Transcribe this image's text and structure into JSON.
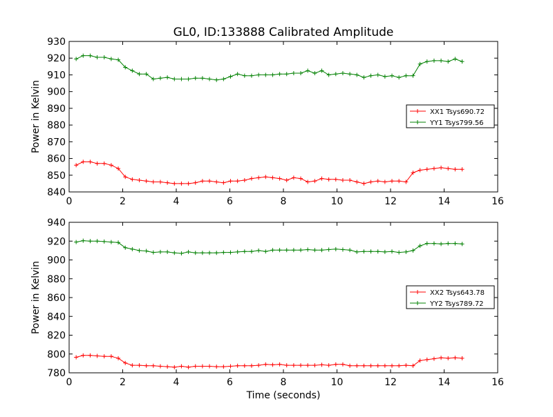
{
  "chart_data": {
    "title": "GL0, ID:133888 Calibrated Amplitude",
    "xlabel": "Time (seconds)",
    "colors": {
      "XX": "#ff0000",
      "YY": "#008000"
    },
    "x": [
      0.262,
      0.524,
      0.786,
      1.048,
      1.31,
      1.572,
      1.834,
      2.096,
      2.358,
      2.62,
      2.882,
      3.144,
      3.406,
      3.668,
      3.93,
      4.192,
      4.454,
      4.716,
      4.978,
      5.24,
      5.502,
      5.764,
      6.026,
      6.288,
      6.55,
      6.812,
      7.074,
      7.336,
      7.598,
      7.86,
      8.122,
      8.384,
      8.646,
      8.908,
      9.17,
      9.432,
      9.694,
      9.956,
      10.218,
      10.48,
      10.742,
      11.004,
      11.266,
      11.528,
      11.79,
      12.052,
      12.314,
      12.576,
      12.838,
      13.1,
      13.362,
      13.624,
      13.886,
      14.148,
      14.41,
      14.672
    ],
    "panels": [
      {
        "ylabel": "Power in Kelvin",
        "xlim": [
          0,
          16
        ],
        "ylim": [
          840,
          930
        ],
        "xticks": [
          0,
          2,
          4,
          6,
          8,
          10,
          12,
          14,
          16
        ],
        "yticks": [
          840,
          850,
          860,
          870,
          880,
          890,
          900,
          910,
          920,
          930
        ],
        "legend_position": "right",
        "series": [
          {
            "name": "XX1 Tsys690.72",
            "color_key": "XX",
            "values": [
              856,
              858,
              858,
              857,
              857,
              856,
              854,
              849,
              847.5,
              847,
              846.5,
              846,
              846,
              845.5,
              845,
              845,
              845,
              845.5,
              846.5,
              846.5,
              846,
              845.5,
              846.5,
              846.5,
              847,
              848,
              848.5,
              849,
              848.5,
              848,
              847,
              848.5,
              848,
              846,
              846.5,
              848,
              847.5,
              847.5,
              847,
              847,
              846,
              845,
              846,
              846.5,
              846,
              846.5,
              846.5,
              846,
              851.5,
              853,
              853.5,
              854,
              854.5,
              854,
              853.5,
              853.5
            ]
          },
          {
            "name": "YY1 Tsys799.56",
            "color_key": "YY",
            "values": [
              919.5,
              921.5,
              921.5,
              920.5,
              920.5,
              919.5,
              919,
              914.5,
              912.5,
              910.5,
              910.5,
              907.5,
              908,
              908.5,
              907.5,
              907.5,
              907.5,
              908,
              908,
              907.5,
              907,
              907.5,
              909,
              910.5,
              909.5,
              909.5,
              910,
              910,
              910,
              910.5,
              910.5,
              911,
              911,
              912.5,
              911,
              912.5,
              910,
              910.5,
              911,
              910.5,
              910,
              908.5,
              909.5,
              910,
              909,
              909.5,
              908.5,
              909.5,
              909.5,
              916.5,
              918,
              918.5,
              918.5,
              918,
              919.5,
              918
            ]
          }
        ]
      },
      {
        "ylabel": "Power in Kelvin",
        "xlim": [
          0,
          16
        ],
        "ylim": [
          780,
          940
        ],
        "xticks": [
          0,
          2,
          4,
          6,
          8,
          10,
          12,
          14,
          16
        ],
        "yticks": [
          780,
          800,
          820,
          840,
          860,
          880,
          900,
          920,
          940
        ],
        "legend_position": "right",
        "series": [
          {
            "name": "XX2 Tsys643.78",
            "color_key": "XX",
            "values": [
              796.5,
              798.5,
              798.5,
              798,
              797.5,
              797.5,
              795.5,
              790.5,
              788,
              788,
              787.5,
              787.5,
              787,
              786.5,
              786,
              787,
              786,
              787,
              787,
              787,
              786.5,
              786.5,
              787,
              787.5,
              787.5,
              787.5,
              788,
              789,
              788.5,
              789,
              788,
              788,
              788,
              788,
              788,
              788.5,
              788,
              789,
              789,
              787.5,
              787.5,
              787.5,
              787.5,
              787.5,
              787.5,
              787.5,
              787.5,
              788,
              787.5,
              793,
              794,
              795,
              796,
              795.5,
              796,
              795.5
            ]
          },
          {
            "name": "YY2 Tsys789.72",
            "color_key": "YY",
            "values": [
              919,
              920.5,
              920,
              920,
              919.5,
              919,
              918.5,
              913,
              911.5,
              910,
              909.5,
              908,
              908.5,
              908.5,
              907.5,
              907,
              908.5,
              907.5,
              907.5,
              907.5,
              907.5,
              908,
              908,
              908.5,
              909,
              909,
              910,
              909,
              910.5,
              910.5,
              910.5,
              910.5,
              910.5,
              911,
              910.5,
              910.5,
              911,
              911.5,
              911,
              910.5,
              908.5,
              909,
              909,
              909,
              908.5,
              909,
              908,
              908.5,
              910,
              915,
              917.5,
              917.5,
              917,
              917.5,
              917.5,
              917
            ]
          }
        ]
      }
    ]
  }
}
